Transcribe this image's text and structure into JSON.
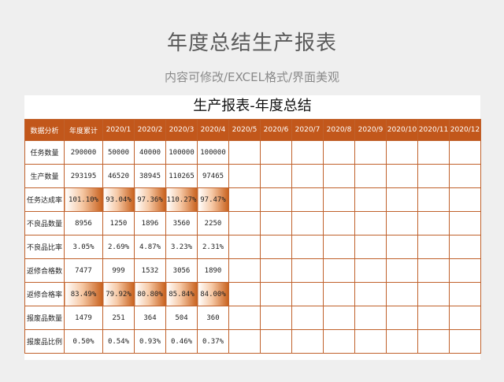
{
  "page": {
    "title": "年度总结生产报表",
    "subtitle": "内容可修改/EXCEL格式/界面美观"
  },
  "sheet": {
    "title": "生产报表-年度总结",
    "header": [
      "数据分析",
      "年度累计",
      "2020/1",
      "2020/2",
      "2020/3",
      "2020/4",
      "2020/5",
      "2020/6",
      "2020/7",
      "2020/8",
      "2020/9",
      "2020/10",
      "2020/11",
      "2020/12"
    ],
    "rows": [
      {
        "label": "任务数量",
        "values": [
          "290000",
          "50000",
          "40000",
          "100000",
          "100000",
          "",
          "",
          "",
          "",
          "",
          "",
          "",
          ""
        ],
        "highlight": false
      },
      {
        "label": "生产数量",
        "values": [
          "293195",
          "46520",
          "38945",
          "110265",
          "97465",
          "",
          "",
          "",
          "",
          "",
          "",
          "",
          ""
        ],
        "highlight": false
      },
      {
        "label": "任务达成率",
        "values": [
          "101.10%",
          "93.04%",
          "97.36%",
          "110.27%",
          "97.47%",
          "",
          "",
          "",
          "",
          "",
          "",
          "",
          ""
        ],
        "highlight": true
      },
      {
        "label": "不良品数量",
        "values": [
          "8956",
          "1250",
          "1896",
          "3560",
          "2250",
          "",
          "",
          "",
          "",
          "",
          "",
          "",
          ""
        ],
        "highlight": false
      },
      {
        "label": "不良品比率",
        "values": [
          "3.05%",
          "2.69%",
          "4.87%",
          "3.23%",
          "2.31%",
          "",
          "",
          "",
          "",
          "",
          "",
          "",
          ""
        ],
        "highlight": false
      },
      {
        "label": "返修合格数",
        "values": [
          "7477",
          "999",
          "1532",
          "3056",
          "1890",
          "",
          "",
          "",
          "",
          "",
          "",
          "",
          ""
        ],
        "highlight": false
      },
      {
        "label": "返修合格率",
        "values": [
          "83.49%",
          "79.92%",
          "80.80%",
          "85.84%",
          "84.00%",
          "",
          "",
          "",
          "",
          "",
          "",
          "",
          ""
        ],
        "highlight": true
      },
      {
        "label": "报废品数量",
        "values": [
          "1479",
          "251",
          "364",
          "504",
          "360",
          "",
          "",
          "",
          "",
          "",
          "",
          "",
          ""
        ],
        "highlight": false
      },
      {
        "label": "报废品比例",
        "values": [
          "0.50%",
          "0.54%",
          "0.93%",
          "0.46%",
          "0.37%",
          "",
          "",
          "",
          "",
          "",
          "",
          "",
          ""
        ],
        "highlight": false
      }
    ]
  },
  "colors": {
    "header_bg": "#c2571b",
    "border": "#c0612b",
    "background": "#efefef"
  }
}
